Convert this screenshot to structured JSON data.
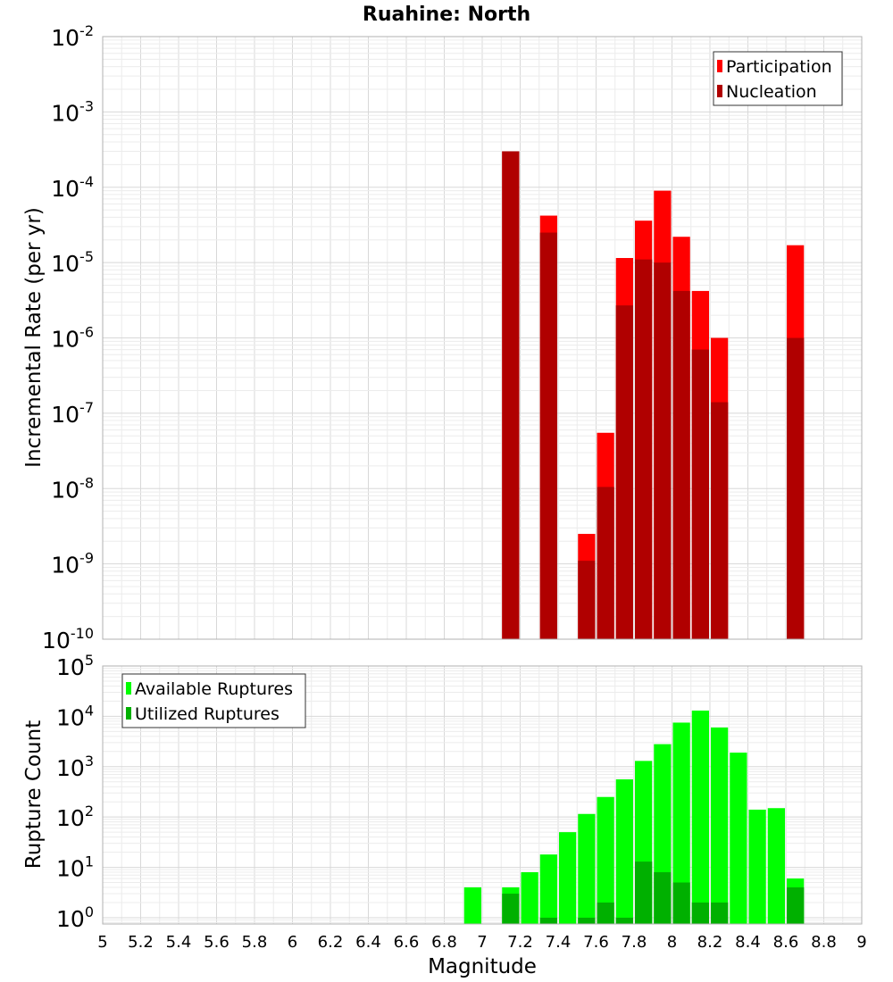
{
  "figure": {
    "title": "Ruahine: North",
    "xlabel": "Magnitude"
  },
  "chart_data": [
    {
      "type": "bar",
      "title": "Ruahine: North",
      "xlabel": "",
      "ylabel": "Incremental Rate (per yr)",
      "yscale": "log",
      "ylim": [
        1e-10,
        0.01
      ],
      "xlim": [
        5,
        9
      ],
      "bin_width": 0.1,
      "grid": true,
      "legend_position": "top-right",
      "y_tick_exponents": [
        "-10",
        "-9",
        "-8",
        "-7",
        "-6",
        "-5",
        "-4",
        "-3",
        "-2"
      ],
      "y_tick_base": "10",
      "series": [
        {
          "name": "Participation",
          "color": "#ff0000",
          "x": [
            7.15,
            7.35,
            7.55,
            7.65,
            7.75,
            7.85,
            7.95,
            8.05,
            8.15,
            8.25,
            8.65
          ],
          "values": [
            0.0003,
            4.2e-05,
            2.5e-09,
            5.5e-08,
            1.15e-05,
            3.6e-05,
            9e-05,
            2.2e-05,
            4.2e-06,
            1e-06,
            1.7e-05
          ]
        },
        {
          "name": "Nucleation",
          "color": "#b00000",
          "x": [
            7.15,
            7.35,
            7.55,
            7.65,
            7.75,
            7.85,
            7.95,
            8.05,
            8.15,
            8.25,
            8.65
          ],
          "values": [
            0.0003,
            2.5e-05,
            1.1e-09,
            1.05e-08,
            2.7e-06,
            1.1e-05,
            1e-05,
            4.2e-06,
            7e-07,
            1.4e-07,
            1e-06
          ]
        }
      ]
    },
    {
      "type": "bar",
      "title": "",
      "xlabel": "Magnitude",
      "ylabel": "Rupture Count",
      "yscale": "log",
      "ylim": [
        0.75,
        100000.0
      ],
      "xlim": [
        5,
        9
      ],
      "bin_width": 0.1,
      "grid": true,
      "legend_position": "top-left",
      "y_tick_exponents": [
        "0",
        "1",
        "2",
        "3",
        "4",
        "5"
      ],
      "y_tick_base": "10",
      "x_ticks": [
        "5",
        "5.2",
        "5.4",
        "5.6",
        "5.8",
        "6",
        "6.2",
        "6.4",
        "6.6",
        "6.8",
        "7",
        "7.2",
        "7.4",
        "7.6",
        "7.8",
        "8",
        "8.2",
        "8.4",
        "8.6",
        "8.8",
        "9"
      ],
      "series": [
        {
          "name": "Available Ruptures",
          "color": "#00ff00",
          "x": [
            6.95,
            7.15,
            7.25,
            7.35,
            7.45,
            7.55,
            7.65,
            7.75,
            7.85,
            7.95,
            8.05,
            8.15,
            8.25,
            8.35,
            8.45,
            8.55,
            8.65
          ],
          "values": [
            4,
            4,
            8,
            18,
            50,
            115,
            250,
            560,
            1300,
            2800,
            7500,
            13000,
            6000,
            1900,
            140,
            150,
            6
          ]
        },
        {
          "name": "Utilized Ruptures",
          "color": "#00b000",
          "x": [
            7.15,
            7.35,
            7.55,
            7.65,
            7.75,
            7.85,
            7.95,
            8.05,
            8.15,
            8.25,
            8.65
          ],
          "values": [
            3,
            1,
            1,
            2,
            1,
            13,
            8,
            5,
            2,
            2,
            4
          ]
        }
      ]
    }
  ]
}
